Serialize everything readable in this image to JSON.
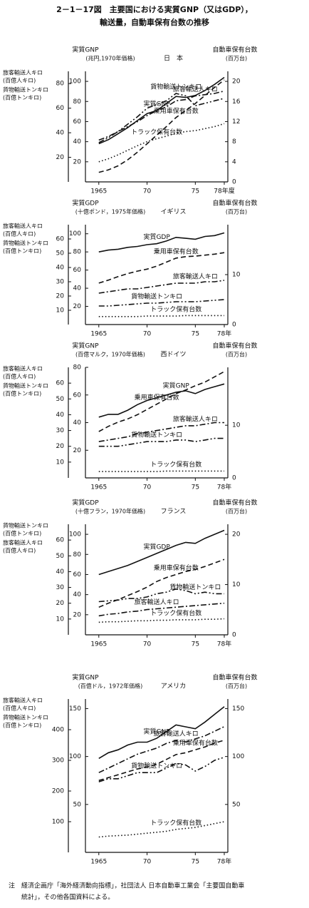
{
  "title": [
    "2－1－17図　主要国における実質GNP（又はGDP），",
    "輸送量，自動車保有台数の推移"
  ],
  "note": [
    "注　経済企画庁「海外経済動向指標」，社団法人 日本自動車工業会「主要国自動車",
    "統計」，その他各国資料による。"
  ],
  "chart_data": [
    {
      "type": "line",
      "title": "日　本",
      "ylabel": "実質GNP",
      "yunit": "(兆円,1970年価格)",
      "y3label": [
        "旅客輸送人キロ",
        "貨物輸送トンキロ"
      ],
      "y3unit": [
        "(百億人キロ)",
        "(百億トンキロ)"
      ],
      "y2label": "自動車保有台数",
      "y2unit": "(百万台)",
      "x": [
        1965,
        1966,
        1967,
        1968,
        1969,
        1970,
        1971,
        1972,
        1973,
        1974,
        1975,
        1976,
        1977,
        1978
      ],
      "xlim": [
        1964.5,
        1978
      ],
      "xticks": [
        1965,
        {
          "value": 1970,
          "label": "70"
        },
        {
          "value": 1975,
          "label": "75"
        },
        {
          "value": 1978,
          "label": "78年度"
        }
      ],
      "ylim": [
        0,
        110
      ],
      "yticks": [
        20,
        40,
        60,
        80,
        100
      ],
      "y3lim": [
        0,
        90
      ],
      "y3ticks": [
        20,
        40,
        60,
        80
      ],
      "y2lim": [
        0,
        22
      ],
      "y2ticks": [
        0,
        4,
        8,
        12,
        16,
        20
      ],
      "series": [
        {
          "name": "実質GNP",
          "color": "#111",
          "style": "solid",
          "axis": "y",
          "values": [
            38,
            42,
            48,
            54,
            61,
            68,
            71,
            78,
            85,
            84,
            86,
            91,
            97,
            104
          ]
        },
        {
          "name": "貨物輸送トンキロ",
          "color": "#111",
          "style": "dashdotdot",
          "axis": "y3",
          "values": [
            32,
            36,
            41,
            47,
            53,
            60,
            63,
            66,
            72,
            70,
            62,
            64,
            66,
            68
          ]
        },
        {
          "name": "旅客輸送人キロ",
          "color": "#111",
          "style": "dashdot",
          "axis": "y3",
          "values": [
            34,
            37,
            41,
            45,
            49,
            54,
            58,
            61,
            66,
            67,
            70,
            71,
            72,
            74
          ]
        },
        {
          "name": "トラック保有台数",
          "color": "#111",
          "style": "dotted",
          "axis": "y2",
          "values": [
            4,
            4.6,
            5.4,
            6.3,
            7.2,
            8,
            8.6,
            9.1,
            9.7,
            10,
            10.2,
            10.6,
            11,
            11.6
          ]
        },
        {
          "name": "乗用車保有台数",
          "color": "#111",
          "style": "dashed",
          "axis": "y2",
          "values": [
            1.9,
            2.4,
            3.2,
            4.4,
            5.9,
            7.6,
            9.3,
            11,
            12.8,
            14.2,
            15.6,
            17.2,
            18.8,
            20.3
          ]
        }
      ]
    },
    {
      "type": "line",
      "title": "イギリス",
      "ylabel": "実質GDP",
      "yunit": "(十億ポンド，1975年価格)",
      "y3label": [
        "旅客輸送人キロ",
        "貨物輸送トンキロ"
      ],
      "y3unit": [
        "(百億人キロ)",
        "(百億トンキロ)"
      ],
      "y2label": "自動車保有台数",
      "y2unit": "(百万台)",
      "x": [
        1965,
        1966,
        1967,
        1968,
        1969,
        1970,
        1971,
        1972,
        1973,
        1974,
        1975,
        1976,
        1977,
        1978
      ],
      "xlim": [
        1964.5,
        1978
      ],
      "xticks": [
        1965,
        {
          "value": 1970,
          "label": "70"
        },
        {
          "value": 1975,
          "label": "75"
        },
        {
          "value": 1978,
          "label": "78年"
        }
      ],
      "ylim": [
        0,
        110
      ],
      "yticks": [
        20,
        40,
        60,
        80,
        100
      ],
      "y3lim": [
        0,
        70
      ],
      "y3ticks": [
        10,
        20,
        30,
        40,
        50,
        60
      ],
      "y2lim": [
        0,
        20
      ],
      "y2ticks": [
        0,
        10
      ],
      "series": [
        {
          "name": "実質GDP",
          "color": "#111",
          "style": "solid",
          "axis": "y",
          "values": [
            80,
            82,
            83,
            85,
            86,
            88,
            89,
            92,
            96,
            95,
            94,
            97,
            98,
            101
          ]
        },
        {
          "name": "乗用車保有台数",
          "color": "#111",
          "style": "dashed",
          "axis": "y2",
          "values": [
            8.3,
            8.9,
            9.6,
            10.2,
            10.7,
            11.1,
            11.7,
            12.5,
            13.3,
            13.6,
            13.7,
            13.9,
            14.1,
            14.4
          ]
        },
        {
          "name": "旅客輸送人キロ",
          "color": "#111",
          "style": "dashdot",
          "axis": "y3",
          "values": [
            22,
            23,
            24,
            25,
            25,
            26,
            27,
            28,
            29,
            29,
            29,
            30,
            30,
            31
          ]
        },
        {
          "name": "貨物輸送トンキロ",
          "color": "#111",
          "style": "dashdotdot",
          "axis": "y3",
          "values": [
            13,
            13,
            13.5,
            14,
            14.5,
            15,
            15,
            15.5,
            16,
            16,
            16,
            16.5,
            17,
            17.5
          ]
        },
        {
          "name": "トラック保有台数",
          "color": "#111",
          "style": "dotted",
          "axis": "y2",
          "values": [
            1.6,
            1.6,
            1.6,
            1.6,
            1.6,
            1.7,
            1.7,
            1.7,
            1.7,
            1.8,
            1.8,
            1.8,
            1.8,
            1.8
          ]
        }
      ]
    },
    {
      "type": "line",
      "title": "西ドイツ",
      "ylabel": "実質GNP",
      "yunit": "(百億マルク，1970年価格)",
      "y3label": [
        "旅客輸送人キロ",
        "貨物輸送トンキロ"
      ],
      "y3unit": [
        "(百億人キロ)",
        "(百億トンキロ)"
      ],
      "y2label": "自動車保有台数",
      "y2unit": "(百万台)",
      "x": [
        1965,
        1966,
        1967,
        1968,
        1969,
        1970,
        1971,
        1972,
        1973,
        1974,
        1975,
        1976,
        1977,
        1978
      ],
      "xlim": [
        1964.5,
        1978
      ],
      "xticks": [
        1965,
        {
          "value": 1970,
          "label": "70"
        },
        {
          "value": 1975,
          "label": "75"
        },
        {
          "value": 1978,
          "label": "78年"
        }
      ],
      "ylim": [
        0,
        80
      ],
      "yticks": [
        20,
        40,
        60,
        80
      ],
      "y3lim": [
        0,
        70
      ],
      "y3ticks": [
        10,
        20,
        30,
        40,
        50,
        60
      ],
      "y2lim": [
        0,
        21
      ],
      "y2ticks": [
        0,
        10
      ],
      "series": [
        {
          "name": "乗用車保有台数",
          "color": "#111",
          "style": "dashed",
          "axis": "y2",
          "values": [
            8.8,
            9.8,
            10.6,
            11.2,
            12,
            13,
            14,
            15,
            16,
            16.7,
            17.5,
            18.2,
            19.2,
            20.2
          ]
        },
        {
          "name": "実質GNP",
          "color": "#111",
          "style": "solid",
          "axis": "y",
          "values": [
            44,
            46,
            46,
            49,
            53,
            56,
            58,
            60,
            62,
            63,
            61,
            64,
            66,
            68
          ]
        },
        {
          "name": "旅客輸送人キロ",
          "color": "#111",
          "style": "dashdot",
          "axis": "y3",
          "values": [
            23,
            24,
            25,
            26,
            28,
            29,
            30,
            31,
            32,
            33,
            33,
            34,
            35,
            35
          ]
        },
        {
          "name": "貨物輸送トンキロ",
          "color": "#111",
          "style": "dashdotdot",
          "axis": "y3",
          "values": [
            20,
            20,
            20,
            21,
            22,
            23,
            23,
            23,
            24,
            24,
            23,
            24,
            25,
            25
          ]
        },
        {
          "name": "トラック保有台数",
          "color": "#111",
          "style": "dotted",
          "axis": "y2",
          "values": [
            1.2,
            1.2,
            1.2,
            1.2,
            1.2,
            1.2,
            1.2,
            1.3,
            1.3,
            1.3,
            1.3,
            1.3,
            1.3,
            1.3
          ]
        }
      ]
    },
    {
      "type": "line",
      "title": "フランス",
      "ylabel": "実質GDP",
      "yunit": "(十億フラン，1970年価格)",
      "y3label": [
        "貨物輸送トンキロ",
        "旅客輸送人キロ"
      ],
      "y3unit": [
        "(百億トンキロ)",
        "(百億人キロ)"
      ],
      "y2label": "自動車保有台数",
      "y2unit": "(百万台)",
      "x": [
        1965,
        1966,
        1967,
        1968,
        1969,
        1970,
        1971,
        1972,
        1973,
        1974,
        1975,
        1976,
        1977,
        1978
      ],
      "xlim": [
        1964.5,
        1978
      ],
      "xticks": [
        1965,
        {
          "value": 1970,
          "label": "70"
        },
        {
          "value": 1975,
          "label": "75"
        },
        {
          "value": 1978,
          "label": "78年"
        }
      ],
      "ylim": [
        0,
        110
      ],
      "yticks": [
        20,
        40,
        60,
        80,
        100
      ],
      "y3lim": [
        0,
        70
      ],
      "y3ticks": [
        10,
        20,
        30,
        40,
        50,
        60
      ],
      "y2lim": [
        0,
        22
      ],
      "y2ticks": [
        0,
        10,
        20
      ],
      "series": [
        {
          "name": "実質GDP",
          "color": "#111",
          "style": "solid",
          "axis": "y",
          "values": [
            60,
            63,
            66,
            69,
            73,
            77,
            81,
            85,
            89,
            92,
            91,
            96,
            100,
            104
          ]
        },
        {
          "name": "乗用車保有台数",
          "color": "#111",
          "style": "dashed",
          "axis": "y2",
          "values": [
            5.5,
            6.3,
            7,
            7.8,
            8.6,
            9.5,
            10.6,
            11.4,
            12,
            12.6,
            13,
            13.6,
            14.3,
            15
          ]
        },
        {
          "name": "貨物輸送トンキロ",
          "color": "#111",
          "style": "dashdotdot",
          "axis": "y3",
          "values": [
            21,
            21.5,
            22,
            23,
            23,
            24,
            26,
            27,
            29,
            28,
            26,
            27,
            26,
            26
          ]
        },
        {
          "name": "旅客輸送人キロ",
          "color": "#111",
          "style": "dashdot",
          "axis": "y3",
          "values": [
            12,
            13,
            13.5,
            14.5,
            15,
            16,
            16.5,
            17,
            17.5,
            18,
            18.5,
            19,
            19.5,
            20
          ]
        },
        {
          "name": "トラック保有台数",
          "color": "#111",
          "style": "dotted",
          "axis": "y2",
          "values": [
            2.5,
            2.6,
            2.6,
            2.7,
            2.8,
            2.8,
            2.9,
            2.9,
            3,
            3,
            3,
            3.1,
            3.1,
            3.2
          ]
        }
      ]
    },
    {
      "type": "line",
      "title": "アメリカ",
      "ylabel": "実質GNP",
      "yunit": "(百億ドル，1972年価格)",
      "y3label": [
        "旅客輸送人キロ",
        "貨物輸送トンキロ"
      ],
      "y3unit": [
        "(百億人キロ)",
        "(百億トンキロ)"
      ],
      "y2label": "自動車保有台数",
      "y2unit": "(百万台)",
      "x": [
        1965,
        1966,
        1967,
        1968,
        1969,
        1970,
        1971,
        1972,
        1973,
        1974,
        1975,
        1976,
        1977,
        1978
      ],
      "xlim": [
        1964.5,
        1978
      ],
      "xticks": [
        1965,
        {
          "value": 1970,
          "label": "70"
        },
        {
          "value": 1975,
          "label": "75"
        },
        {
          "value": 1978,
          "label": "78年"
        }
      ],
      "ylim": [
        0,
        160
      ],
      "yticks": [
        50,
        100,
        150
      ],
      "y3lim": [
        0,
        500
      ],
      "y3ticks": [
        100,
        200,
        300,
        400
      ],
      "y2lim": [
        0,
        160
      ],
      "y2ticks": [
        50,
        100,
        150
      ],
      "series": [
        {
          "name": "実質GNP",
          "color": "#111",
          "style": "solid",
          "axis": "y",
          "values": [
            98,
            104,
            107,
            112,
            115,
            115,
            119,
            126,
            133,
            131,
            129,
            136,
            144,
            152
          ]
        },
        {
          "name": "旅客輸送人キロ",
          "color": "#111",
          "style": "dashdot",
          "axis": "y3",
          "values": [
            260,
            275,
            290,
            305,
            320,
            330,
            340,
            355,
            365,
            360,
            370,
            380,
            395,
            410
          ]
        },
        {
          "name": "乗用車保有台数",
          "color": "#111",
          "style": "dashed",
          "axis": "y2",
          "values": [
            75,
            78,
            81,
            84,
            87,
            89,
            92,
            97,
            102,
            104,
            107,
            110,
            114,
            117
          ]
        },
        {
          "name": "貨物輸送トンキロ",
          "color": "#111",
          "style": "dashdotdot",
          "axis": "y3",
          "values": [
            230,
            240,
            240,
            250,
            260,
            260,
            260,
            275,
            290,
            285,
            265,
            280,
            300,
            310
          ]
        },
        {
          "name": "トラック保有台数",
          "color": "#111",
          "style": "dotted",
          "axis": "y2",
          "values": [
            16,
            17,
            17.5,
            18,
            19,
            20,
            21,
            22,
            24,
            25,
            26,
            28,
            30,
            32
          ]
        }
      ]
    }
  ]
}
